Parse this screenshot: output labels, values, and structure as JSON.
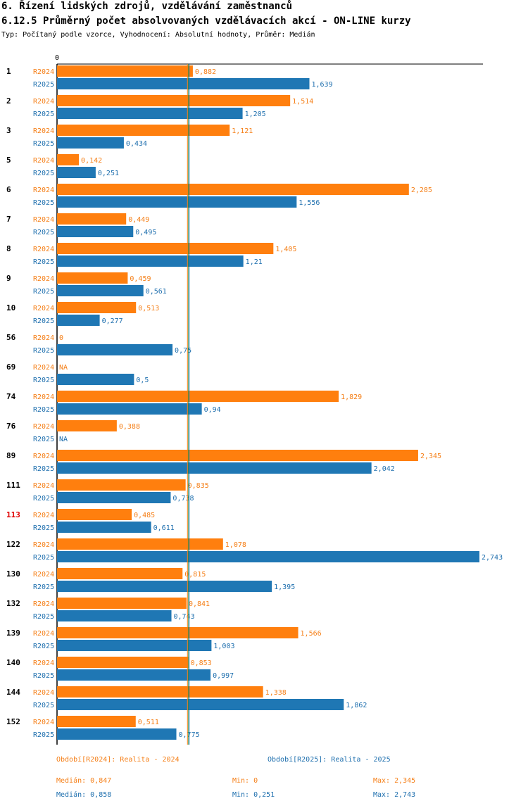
{
  "header": {
    "title1": "6. Řízení lidských zdrojů, vzdělávání zaměstnanců",
    "title2": "6.12.5 Průměrný počet absolvovaných vzdělávacích akcí - ON-LINE kurzy",
    "subtitle": "Typ: Počítaný podle vzorce, Vyhodnocení: Absolutní hodnoty, Průměr: Medián"
  },
  "colors": {
    "r2024": "#ff7f0e",
    "r2025": "#1f77b4",
    "label2024": "#f57f17",
    "label2025": "#1e6fae",
    "highlight": "#e00000",
    "median_line_2024": "#ff7f0e",
    "median_line_2025": "#1f77b4"
  },
  "chart_data": {
    "type": "bar",
    "orientation": "horizontal",
    "axis_zero_label": "0",
    "xlim": [
      0,
      2.743
    ],
    "highlight_category": "113",
    "categories": [
      "1",
      "2",
      "3",
      "5",
      "6",
      "7",
      "8",
      "9",
      "10",
      "56",
      "69",
      "74",
      "76",
      "89",
      "111",
      "113",
      "122",
      "130",
      "132",
      "139",
      "140",
      "144",
      "152"
    ],
    "series": [
      {
        "name": "R2024",
        "values": [
          0.882,
          1.514,
          1.121,
          0.142,
          2.285,
          0.449,
          1.405,
          0.459,
          0.513,
          0,
          null,
          1.829,
          0.388,
          2.345,
          0.835,
          0.485,
          1.078,
          0.815,
          0.841,
          1.566,
          0.853,
          1.338,
          0.511
        ],
        "labels": [
          "0,882",
          "1,514",
          "1,121",
          "0,142",
          "2,285",
          "0,449",
          "1,405",
          "0,459",
          "0,513",
          "0",
          "NA",
          "1,829",
          "0,388",
          "2,345",
          "0,835",
          "0,485",
          "1,078",
          "0,815",
          "0,841",
          "1,566",
          "0,853",
          "1,338",
          "0,511"
        ]
      },
      {
        "name": "R2025",
        "values": [
          1.639,
          1.205,
          0.434,
          0.251,
          1.556,
          0.495,
          1.21,
          0.561,
          0.277,
          0.75,
          0.5,
          0.94,
          null,
          2.042,
          0.738,
          0.611,
          2.743,
          1.395,
          0.743,
          1.003,
          0.997,
          1.862,
          0.775
        ],
        "labels": [
          "1,639",
          "1,205",
          "0,434",
          "0,251",
          "1,556",
          "0,495",
          "1,21",
          "0,561",
          "0,277",
          "0,75",
          "0,5",
          "0,94",
          "NA",
          "2,042",
          "0,738",
          "0,611",
          "2,743",
          "1,395",
          "0,743",
          "1,003",
          "0,997",
          "1,862",
          "0,775"
        ]
      }
    ],
    "medians": {
      "R2024": 0.847,
      "R2025": 0.858
    }
  },
  "legend": {
    "r2024": "Období[R2024]: Realita - 2024",
    "r2025": "Období[R2025]: Realita - 2025"
  },
  "stats": {
    "r2024": {
      "median": "Medián: 0,847",
      "min": "Min: 0",
      "max": "Max: 2,345"
    },
    "r2025": {
      "median": "Medián: 0,858",
      "min": "Min: 0,251",
      "max": "Max: 2,743"
    }
  }
}
